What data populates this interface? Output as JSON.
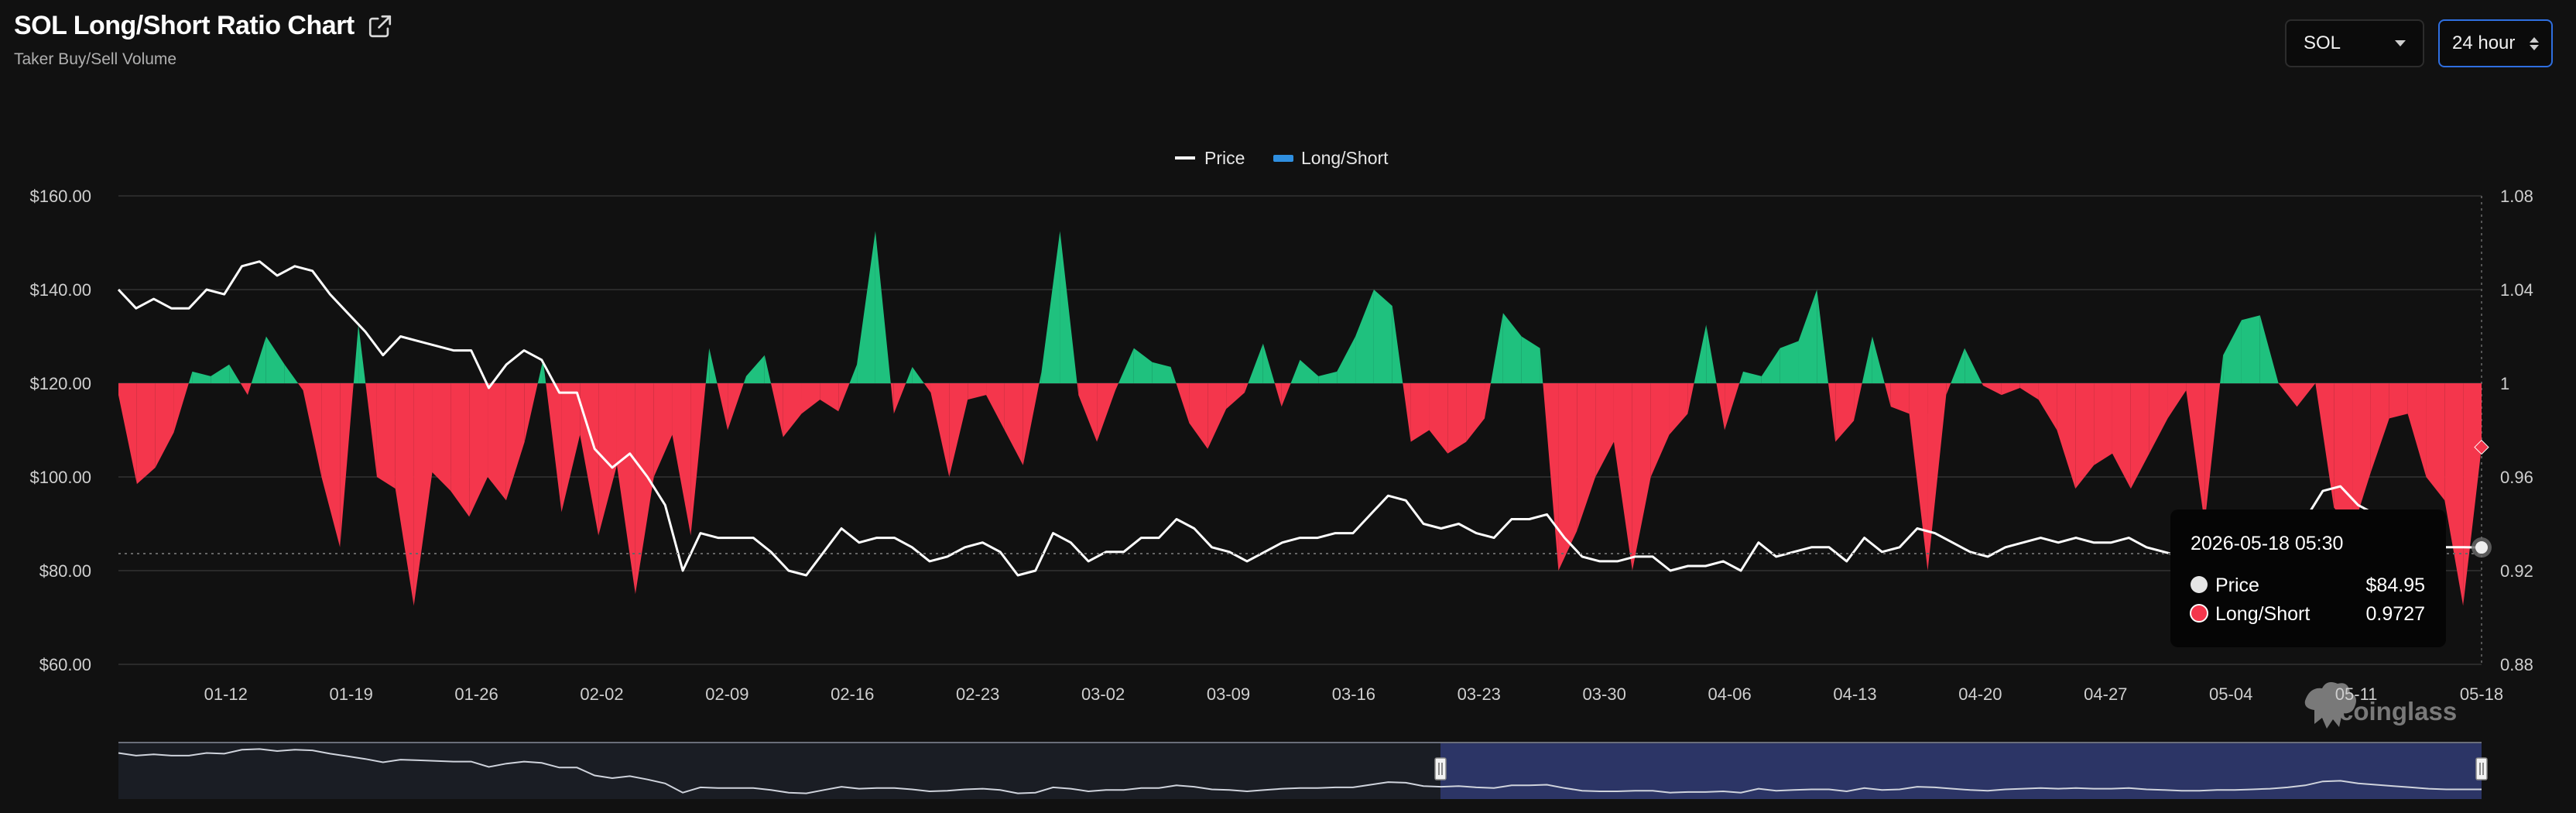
{
  "header": {
    "title": "SOL Long/Short Ratio Chart",
    "subtitle": "Taker Buy/Sell Volume"
  },
  "controls": {
    "symbol": "SOL",
    "range": "24 hour"
  },
  "legend": {
    "price_label": "Price",
    "ratio_label": "Long/Short"
  },
  "watermark": "coinglass",
  "tooltip": {
    "datetime": "2026-05-18 05:30",
    "price_label": "Price",
    "price_value": "$84.95",
    "ratio_label": "Long/Short",
    "ratio_value": "0.9727"
  },
  "colors": {
    "background": "#111111",
    "long": "#1fc17e",
    "short": "#f4364c",
    "price_line": "#ffffff",
    "grid": "#2a2a2a",
    "accent": "#2f6fe0",
    "navigator_selection": "#2c3566"
  },
  "chart_data": {
    "type": "line+area",
    "x_ticks": [
      "01-12",
      "01-19",
      "01-26",
      "02-02",
      "02-09",
      "02-16",
      "02-23",
      "03-02",
      "03-09",
      "03-16",
      "03-23",
      "03-30",
      "04-06",
      "04-13",
      "04-20",
      "04-27",
      "05-04",
      "05-11",
      "05-18"
    ],
    "y_left_ticks": [
      "$160.00",
      "$140.00",
      "$120.00",
      "$100.00",
      "$80.00",
      "$60.00"
    ],
    "y_left_range": [
      60,
      160
    ],
    "y_right_ticks": [
      "1.08",
      "1.04",
      "1",
      "0.96",
      "0.92",
      "0.88"
    ],
    "y_right_range": [
      0.88,
      1.08
    ],
    "ratio_baseline": 1,
    "grid": true,
    "legend_position": "top-center",
    "x_start": "2026-01-06",
    "x_end": "2026-05-18",
    "series": [
      {
        "name": "Price",
        "axis": "left",
        "points": [
          [
            0,
            140
          ],
          [
            1,
            136
          ],
          [
            2,
            138
          ],
          [
            3,
            136
          ],
          [
            4,
            136
          ],
          [
            5,
            140
          ],
          [
            6,
            139
          ],
          [
            7,
            145
          ],
          [
            8,
            146
          ],
          [
            9,
            143
          ],
          [
            10,
            145
          ],
          [
            11,
            144
          ],
          [
            12,
            139
          ],
          [
            13,
            135
          ],
          [
            14,
            131
          ],
          [
            15,
            126
          ],
          [
            16,
            130
          ],
          [
            17,
            129
          ],
          [
            18,
            128
          ],
          [
            19,
            127
          ],
          [
            20,
            127
          ],
          [
            21,
            119
          ],
          [
            22,
            124
          ],
          [
            23,
            127
          ],
          [
            24,
            125
          ],
          [
            25,
            118
          ],
          [
            26,
            118
          ],
          [
            27,
            106
          ],
          [
            28,
            102
          ],
          [
            29,
            105
          ],
          [
            30,
            100
          ],
          [
            31,
            94
          ],
          [
            32,
            80
          ],
          [
            33,
            88
          ],
          [
            34,
            87
          ],
          [
            35,
            87
          ],
          [
            36,
            87
          ],
          [
            37,
            84
          ],
          [
            38,
            80
          ],
          [
            39,
            79
          ],
          [
            40,
            84
          ],
          [
            41,
            89
          ],
          [
            42,
            86
          ],
          [
            43,
            87
          ],
          [
            44,
            87
          ],
          [
            45,
            85
          ],
          [
            46,
            82
          ],
          [
            47,
            83
          ],
          [
            48,
            85
          ],
          [
            49,
            86
          ],
          [
            50,
            84
          ],
          [
            51,
            79
          ],
          [
            52,
            80
          ],
          [
            53,
            88
          ],
          [
            54,
            86
          ],
          [
            55,
            82
          ],
          [
            56,
            84
          ],
          [
            57,
            84
          ],
          [
            58,
            87
          ],
          [
            59,
            87
          ],
          [
            60,
            91
          ],
          [
            61,
            89
          ],
          [
            62,
            85
          ],
          [
            63,
            84
          ],
          [
            64,
            82
          ],
          [
            65,
            84
          ],
          [
            66,
            86
          ],
          [
            67,
            87
          ],
          [
            68,
            87
          ],
          [
            69,
            88
          ],
          [
            70,
            88
          ],
          [
            71,
            92
          ],
          [
            72,
            96
          ],
          [
            73,
            95
          ],
          [
            74,
            90
          ],
          [
            75,
            89
          ],
          [
            76,
            90
          ],
          [
            77,
            88
          ],
          [
            78,
            87
          ],
          [
            79,
            91
          ],
          [
            80,
            91
          ],
          [
            81,
            92
          ],
          [
            82,
            87
          ],
          [
            83,
            83
          ],
          [
            84,
            82
          ],
          [
            85,
            82
          ],
          [
            86,
            83
          ],
          [
            87,
            83
          ],
          [
            88,
            80
          ],
          [
            89,
            81
          ],
          [
            90,
            81
          ],
          [
            91,
            82
          ],
          [
            92,
            80
          ],
          [
            93,
            86
          ],
          [
            94,
            83
          ],
          [
            95,
            84
          ],
          [
            96,
            85
          ],
          [
            97,
            85
          ],
          [
            98,
            82
          ],
          [
            99,
            87
          ],
          [
            100,
            84
          ],
          [
            101,
            85
          ],
          [
            102,
            89
          ],
          [
            103,
            88
          ],
          [
            104,
            86
          ],
          [
            105,
            84
          ],
          [
            106,
            83
          ],
          [
            107,
            85
          ],
          [
            108,
            86
          ],
          [
            109,
            87
          ],
          [
            110,
            86
          ],
          [
            111,
            87
          ],
          [
            112,
            86
          ],
          [
            113,
            86
          ],
          [
            114,
            87
          ],
          [
            115,
            85
          ],
          [
            116,
            84
          ],
          [
            117,
            83
          ],
          [
            118,
            83
          ],
          [
            119,
            84
          ],
          [
            120,
            84
          ],
          [
            121,
            85
          ],
          [
            122,
            86
          ],
          [
            123,
            88
          ],
          [
            124,
            91
          ],
          [
            125,
            97
          ],
          [
            126,
            98
          ],
          [
            127,
            94
          ],
          [
            128,
            92
          ],
          [
            129,
            90
          ],
          [
            130,
            88
          ],
          [
            131,
            86
          ],
          [
            132,
            85
          ],
          [
            133,
            85
          ],
          [
            134,
            84.95
          ]
        ]
      },
      {
        "name": "Long/Short",
        "axis": "right",
        "points": [
          [
            0,
            0.995
          ],
          [
            1,
            0.957
          ],
          [
            2,
            0.964
          ],
          [
            3,
            0.979
          ],
          [
            4,
            1.005
          ],
          [
            5,
            1.003
          ],
          [
            6,
            1.008
          ],
          [
            7,
            0.995
          ],
          [
            8,
            1.02
          ],
          [
            9,
            1.008
          ],
          [
            10,
            0.997
          ],
          [
            11,
            0.96
          ],
          [
            12,
            0.93
          ],
          [
            13,
            1.025
          ],
          [
            14,
            0.96
          ],
          [
            15,
            0.955
          ],
          [
            16,
            0.905
          ],
          [
            17,
            0.962
          ],
          [
            18,
            0.954
          ],
          [
            19,
            0.943
          ],
          [
            20,
            0.96
          ],
          [
            21,
            0.95
          ],
          [
            22,
            0.975
          ],
          [
            23,
            1.01
          ],
          [
            24,
            0.945
          ],
          [
            25,
            0.978
          ],
          [
            26,
            0.935
          ],
          [
            27,
            0.965
          ],
          [
            28,
            0.91
          ],
          [
            29,
            0.96
          ],
          [
            30,
            0.978
          ],
          [
            31,
            0.935
          ],
          [
            32,
            1.015
          ],
          [
            33,
            0.98
          ],
          [
            34,
            1.003
          ],
          [
            35,
            1.012
          ],
          [
            36,
            0.977
          ],
          [
            37,
            0.987
          ],
          [
            38,
            0.993
          ],
          [
            39,
            0.988
          ],
          [
            40,
            1.008
          ],
          [
            41,
            1.065
          ],
          [
            42,
            0.987
          ],
          [
            43,
            1.007
          ],
          [
            44,
            0.996
          ],
          [
            45,
            0.96
          ],
          [
            46,
            0.993
          ],
          [
            47,
            0.995
          ],
          [
            48,
            0.98
          ],
          [
            49,
            0.965
          ],
          [
            50,
            1.005
          ],
          [
            51,
            1.065
          ],
          [
            52,
            0.995
          ],
          [
            53,
            0.975
          ],
          [
            54,
            0.997
          ],
          [
            55,
            1.015
          ],
          [
            56,
            1.009
          ],
          [
            57,
            1.007
          ],
          [
            58,
            0.983
          ],
          [
            59,
            0.972
          ],
          [
            60,
            0.989
          ],
          [
            61,
            0.996
          ],
          [
            62,
            1.017
          ],
          [
            63,
            0.99
          ],
          [
            64,
            1.01
          ],
          [
            65,
            1.003
          ],
          [
            66,
            1.005
          ],
          [
            67,
            1.02
          ],
          [
            68,
            1.04
          ],
          [
            69,
            1.033
          ],
          [
            70,
            0.975
          ],
          [
            71,
            0.98
          ],
          [
            72,
            0.97
          ],
          [
            73,
            0.975
          ],
          [
            74,
            0.985
          ],
          [
            75,
            1.03
          ],
          [
            76,
            1.02
          ],
          [
            77,
            1.015
          ],
          [
            78,
            0.92
          ],
          [
            79,
            0.937
          ],
          [
            80,
            0.96
          ],
          [
            81,
            0.975
          ],
          [
            82,
            0.92
          ],
          [
            83,
            0.96
          ],
          [
            84,
            0.978
          ],
          [
            85,
            0.987
          ],
          [
            86,
            1.025
          ],
          [
            87,
            0.98
          ],
          [
            88,
            1.005
          ],
          [
            89,
            1.003
          ],
          [
            90,
            1.015
          ],
          [
            91,
            1.018
          ],
          [
            92,
            1.04
          ],
          [
            93,
            0.975
          ],
          [
            94,
            0.984
          ],
          [
            95,
            1.02
          ],
          [
            96,
            0.99
          ],
          [
            97,
            0.987
          ],
          [
            98,
            0.92
          ],
          [
            99,
            0.995
          ],
          [
            100,
            1.015
          ],
          [
            101,
            0.999
          ],
          [
            102,
            0.995
          ],
          [
            103,
            0.998
          ],
          [
            104,
            0.993
          ],
          [
            105,
            0.98
          ],
          [
            106,
            0.955
          ],
          [
            107,
            0.965
          ],
          [
            108,
            0.97
          ],
          [
            109,
            0.955
          ],
          [
            110,
            0.97
          ],
          [
            111,
            0.985
          ],
          [
            112,
            0.997
          ],
          [
            113,
            0.94
          ],
          [
            114,
            1.012
          ],
          [
            115,
            1.027
          ],
          [
            116,
            1.029
          ],
          [
            117,
            1.0
          ],
          [
            118,
            0.99
          ],
          [
            119,
            1.0
          ],
          [
            120,
            0.947
          ],
          [
            121,
            0.937
          ],
          [
            122,
            0.962
          ],
          [
            123,
            0.985
          ],
          [
            124,
            0.987
          ],
          [
            125,
            0.96
          ],
          [
            126,
            0.95
          ],
          [
            127,
            0.905
          ],
          [
            128,
            0.9727
          ]
        ]
      }
    ]
  }
}
